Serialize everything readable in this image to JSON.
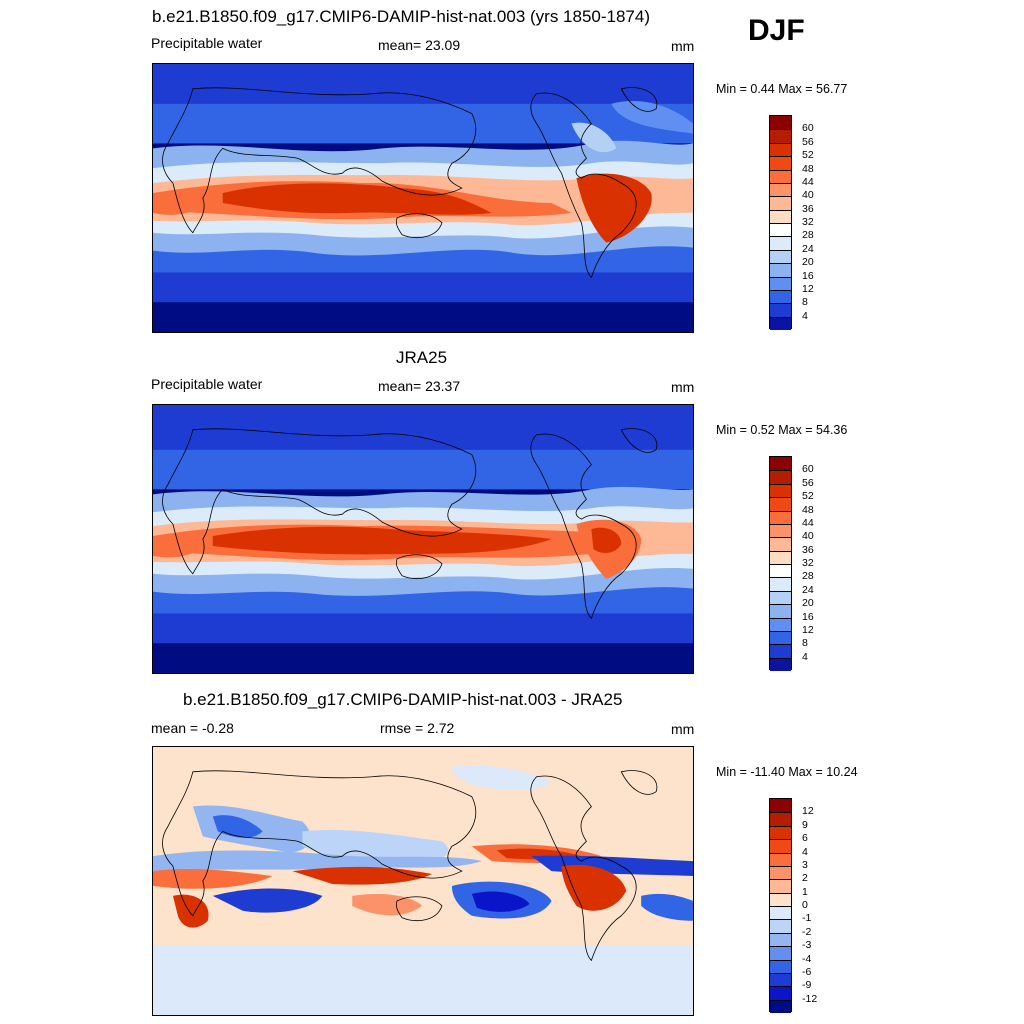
{
  "season": "DJF",
  "panels": [
    {
      "title": "b.e21.B1850.f09_g17.CMIP6-DAMIP-hist-nat.003 (yrs 1850-1874)",
      "left_label": "Precipitable water",
      "center_label": "mean=  23.09",
      "units": "mm",
      "minmax": "Min =   0.44 Max =  56.77",
      "kind": "abs"
    },
    {
      "title": "JRA25",
      "left_label": "Precipitable water",
      "center_label": "mean=  23.37",
      "units": "mm",
      "minmax": "Min =   0.52 Max =  54.36",
      "kind": "abs"
    },
    {
      "title": "b.e21.B1850.f09_g17.CMIP6-DAMIP-hist-nat.003 - JRA25",
      "left_label": "mean =  -0.28",
      "center_label": "rmse =   2.72",
      "units": "mm",
      "minmax": "Min = -11.40 Max =  10.24",
      "kind": "diff"
    }
  ],
  "colorbar_abs": {
    "levels": [
      "60",
      "56",
      "52",
      "48",
      "44",
      "40",
      "36",
      "32",
      "28",
      "24",
      "20",
      "16",
      "12",
      "8",
      "4"
    ],
    "colors": [
      "#8b0000",
      "#b41d00",
      "#d93200",
      "#f04a14",
      "#fa6e3c",
      "#fc9268",
      "#fdb996",
      "#fddcc4",
      "#ffffff",
      "#dcebfa",
      "#b4d0f5",
      "#8cb2f0",
      "#5f8ff0",
      "#3264e6",
      "#1e3cd2",
      "#0a14a0"
    ]
  },
  "colorbar_diff": {
    "levels": [
      "12",
      "9",
      "6",
      "4",
      "3",
      "2",
      "1",
      "0",
      "-1",
      "-2",
      "-3",
      "-4",
      "-6",
      "-9",
      "-12"
    ],
    "colors": [
      "#8b0000",
      "#b41d00",
      "#d93200",
      "#f04a14",
      "#fa6e3c",
      "#fc9268",
      "#fdb996",
      "#fde2cc",
      "#dbe9fb",
      "#bcd4f7",
      "#93b6f1",
      "#628ff0",
      "#3264e6",
      "#1e3cd2",
      "#0a14c8",
      "#000a82"
    ]
  }
}
